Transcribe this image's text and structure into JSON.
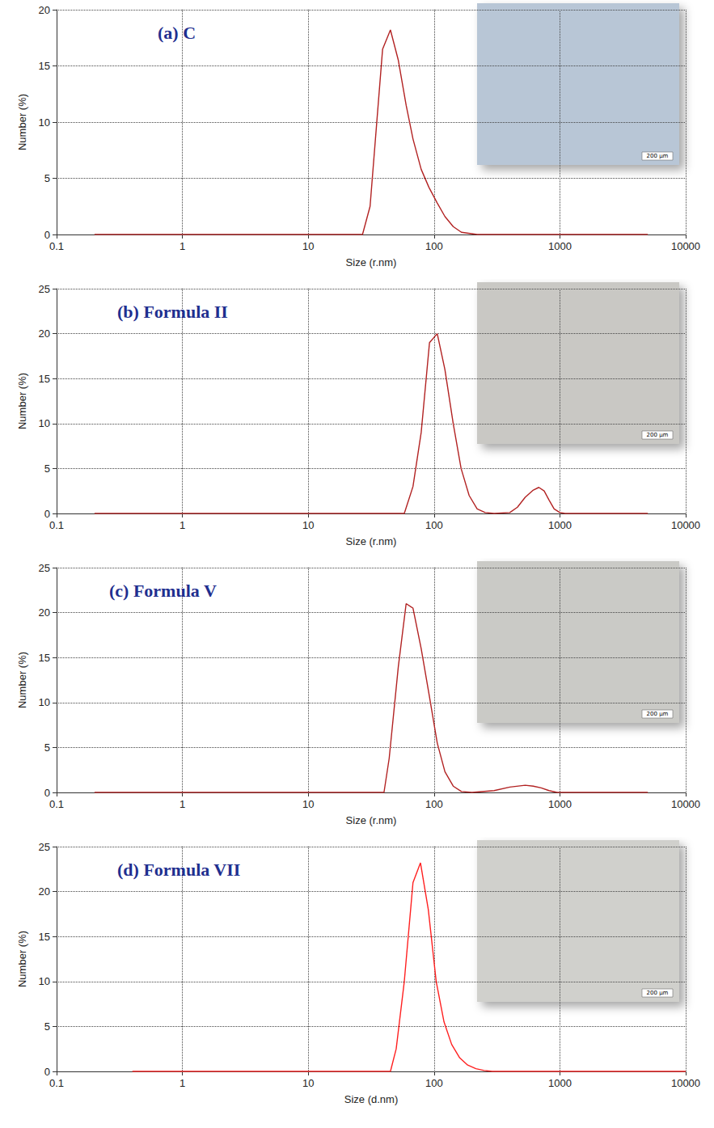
{
  "chart_data": [
    {
      "type": "line",
      "title": "(a) C",
      "x_label": "Size (r.nm)",
      "y_label": "Number (%)",
      "color": "#b22222",
      "x": [
        0.2,
        27,
        31,
        39,
        45,
        52,
        60,
        68,
        79,
        91,
        106,
        122,
        142,
        165,
        220,
        5000
      ],
      "values": [
        0,
        0,
        2.5,
        16.5,
        18.2,
        15.5,
        11.5,
        8.5,
        5.8,
        4.2,
        2.8,
        1.6,
        0.7,
        0.2,
        0,
        0
      ],
      "xlim": [
        0.1,
        10000
      ],
      "xticks": [
        0.1,
        1,
        10,
        100,
        1000,
        10000
      ],
      "log": "x",
      "ylim": [
        0,
        20
      ],
      "yticks": [
        0,
        5,
        10,
        15,
        20
      ],
      "grid": true,
      "inset_label": "200 µm"
    },
    {
      "type": "line",
      "title": "(b) Formula II",
      "x_label": "Size (r.nm)",
      "y_label": "Number (%)",
      "color": "#b22222",
      "x": [
        0.2,
        58,
        68,
        79,
        92,
        106,
        122,
        142,
        164,
        190,
        220,
        255,
        300,
        400,
        460,
        530,
        615,
        680,
        750,
        820,
        900,
        1000,
        1100,
        5000
      ],
      "values": [
        0,
        0,
        3,
        9,
        19,
        20,
        16,
        10,
        5,
        2,
        0.5,
        0.1,
        0,
        0.1,
        0.7,
        1.8,
        2.6,
        2.9,
        2.5,
        1.5,
        0.5,
        0.1,
        0,
        0
      ],
      "xlim": [
        0.1,
        10000
      ],
      "xticks": [
        0.1,
        1,
        10,
        100,
        1000,
        10000
      ],
      "log": "x",
      "ylim": [
        0,
        25
      ],
      "yticks": [
        0,
        5,
        10,
        15,
        20,
        25
      ],
      "grid": true,
      "inset_label": "200 µm"
    },
    {
      "type": "line",
      "title": "(c) Formula V",
      "x_label": "Size (r.nm)",
      "y_label": "Number (%)",
      "color": "#b22222",
      "x": [
        0.2,
        40,
        44,
        52,
        60,
        68,
        79,
        91,
        106,
        122,
        142,
        165,
        200,
        300,
        400,
        530,
        615,
        710,
        820,
        950,
        5000
      ],
      "values": [
        0,
        0,
        3.8,
        14,
        21,
        20.5,
        16,
        11,
        5.5,
        2.3,
        0.7,
        0.1,
        0,
        0.2,
        0.6,
        0.8,
        0.7,
        0.5,
        0.2,
        0,
        0
      ],
      "xlim": [
        0.1,
        10000
      ],
      "xticks": [
        0.1,
        1,
        10,
        100,
        1000,
        10000
      ],
      "log": "x",
      "ylim": [
        0,
        25
      ],
      "yticks": [
        0,
        5,
        10,
        15,
        20,
        25
      ],
      "grid": true,
      "inset_label": "200 µm"
    },
    {
      "type": "line",
      "title": "(d) Formula VII",
      "x_label": "Size (d.nm)",
      "y_label": "Number (%)",
      "color": "#ff2020",
      "x": [
        0.4,
        45,
        50,
        58,
        68,
        78,
        90,
        104,
        120,
        138,
        160,
        185,
        215,
        250,
        290,
        10000
      ],
      "values": [
        0,
        0,
        2.5,
        10,
        21,
        23.2,
        18,
        10,
        5.5,
        3,
        1.5,
        0.7,
        0.3,
        0.1,
        0,
        0
      ],
      "xlim": [
        0.1,
        10000
      ],
      "xticks": [
        0.1,
        1,
        10,
        100,
        1000,
        10000
      ],
      "log": "x",
      "ylim": [
        0,
        25
      ],
      "yticks": [
        0,
        5,
        10,
        15,
        20,
        25
      ],
      "grid": true,
      "inset_label": "200 µm"
    }
  ]
}
